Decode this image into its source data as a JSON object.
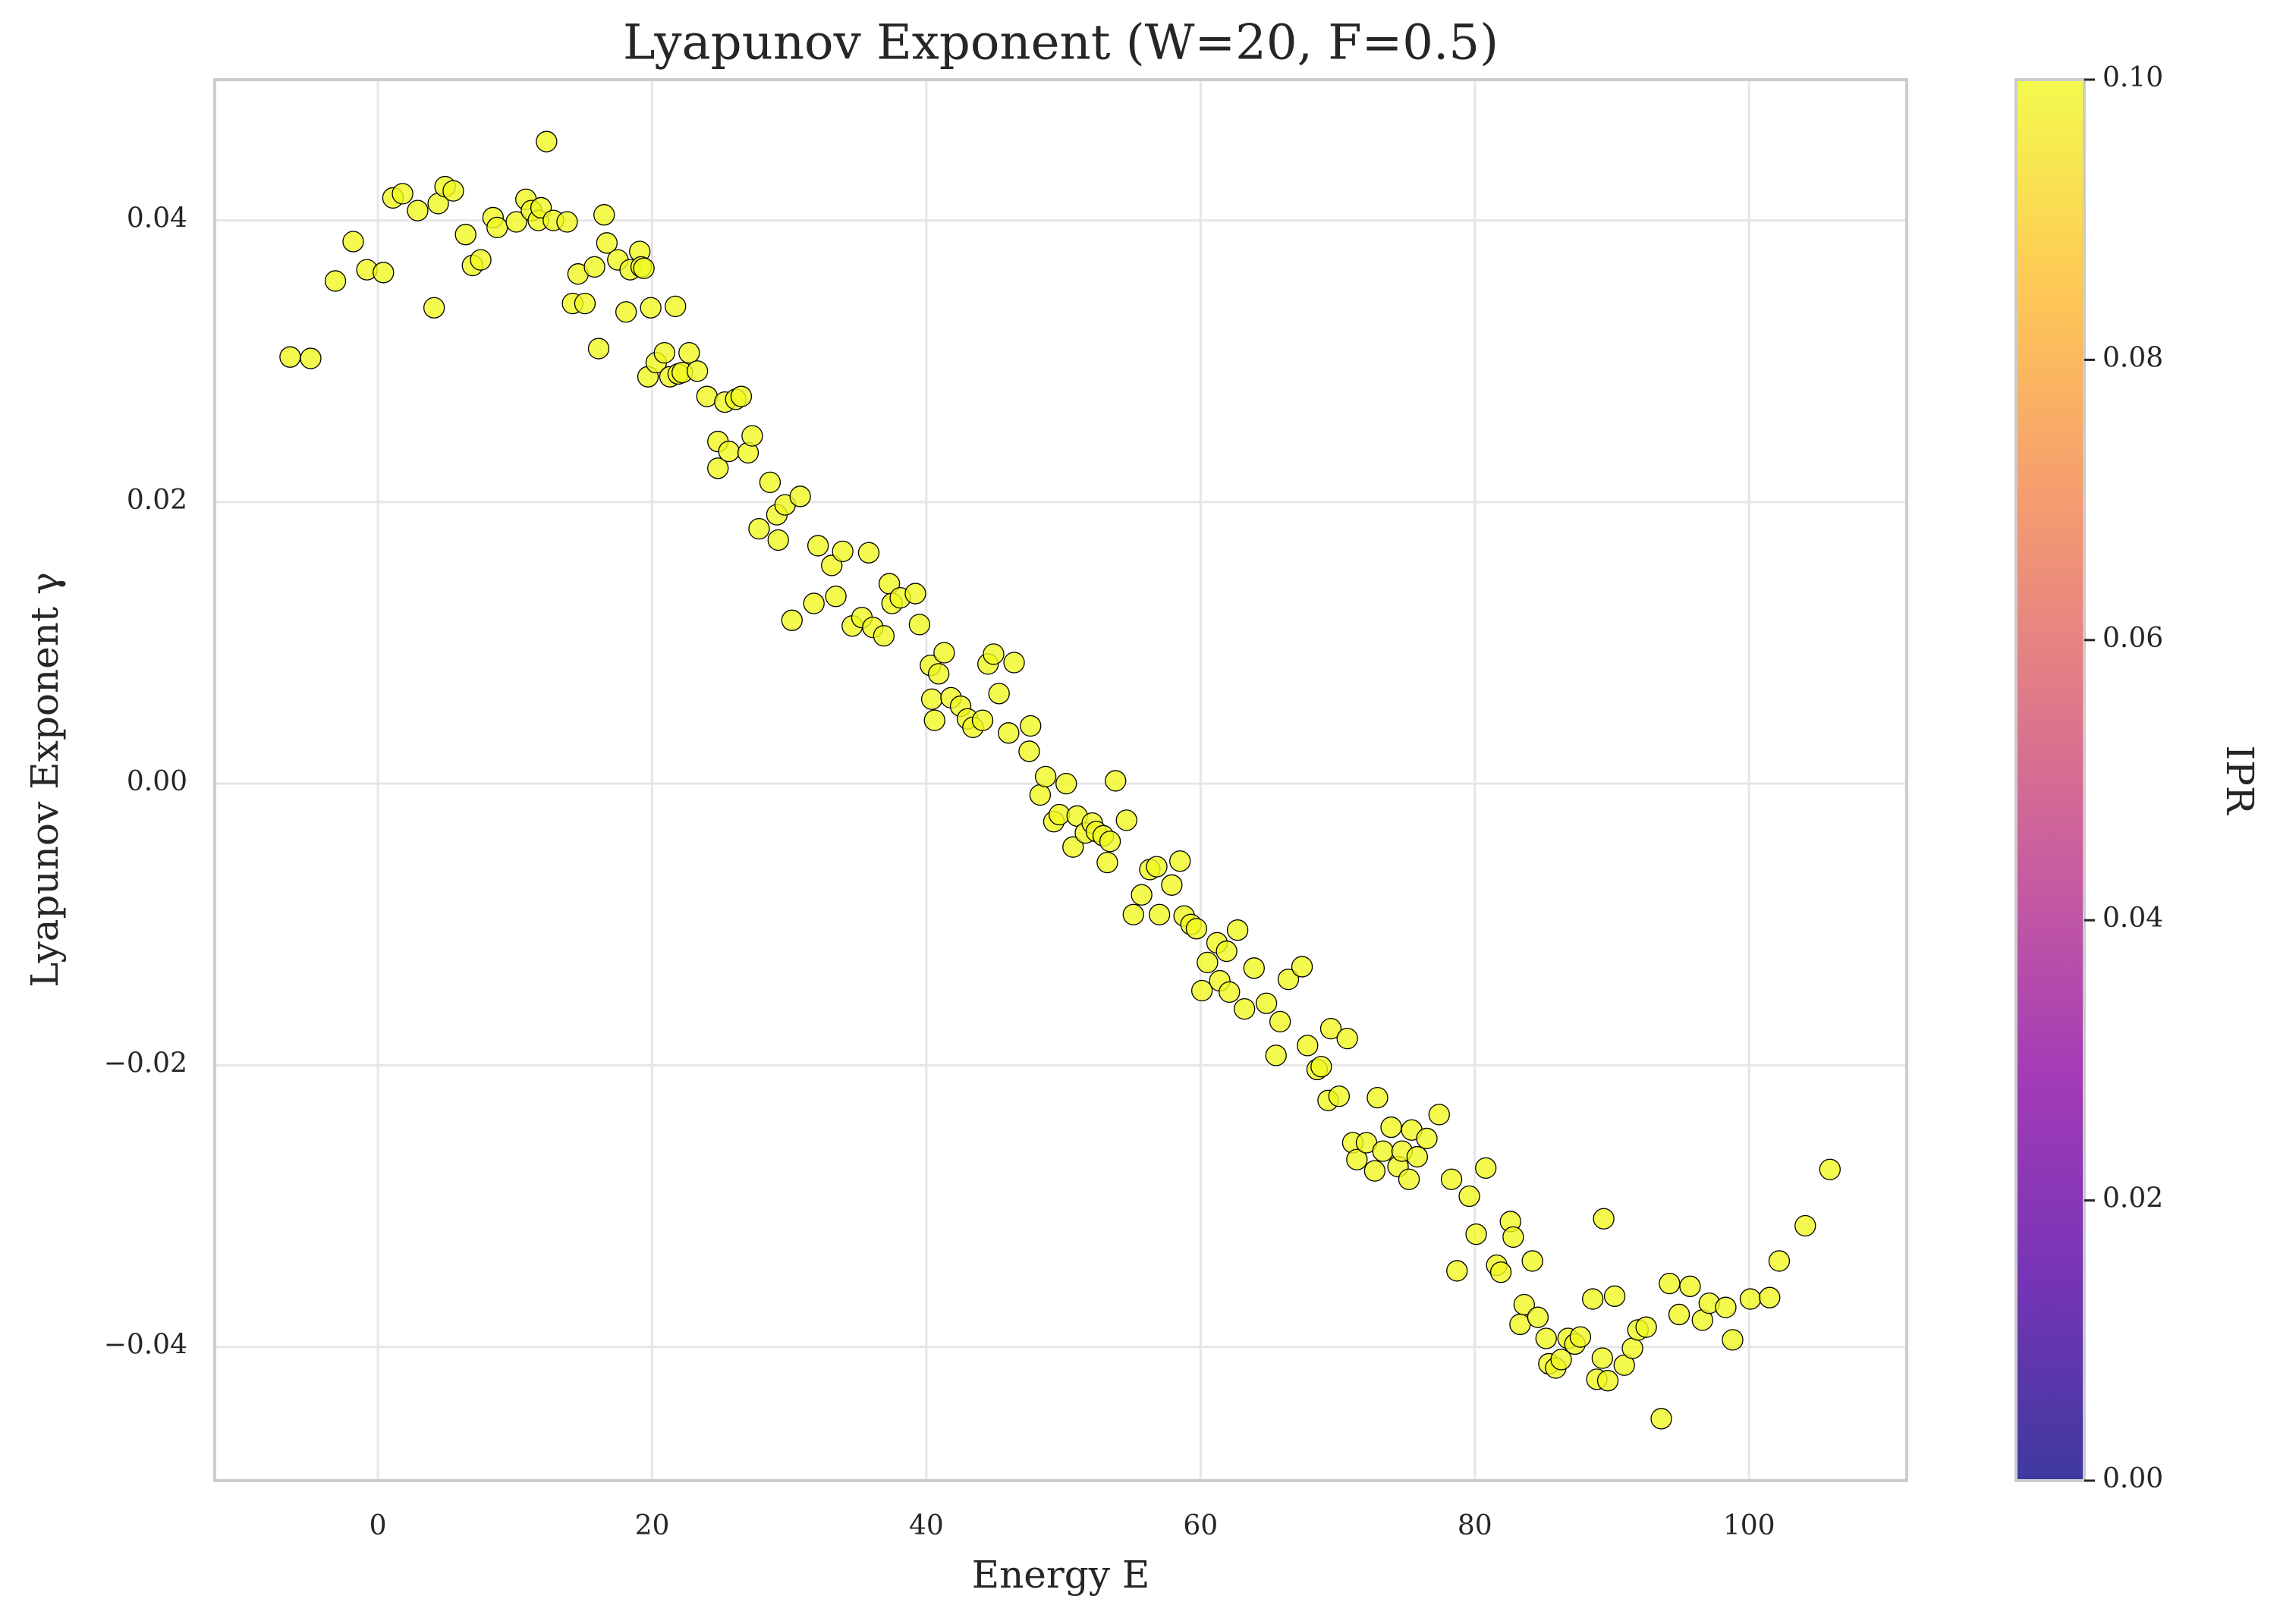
{
  "chart_data": {
    "type": "scatter",
    "title": "Lyapunov Exponent (W=20, F=0.5)",
    "xlabel": "Energy E",
    "ylabel": "Lyapunov Exponent γ",
    "x": [
      -6.4,
      -4.9,
      -3.1,
      -1.8,
      -0.8,
      0.4,
      1.1,
      1.8,
      2.9,
      4.1,
      4.4,
      4.9,
      5.5,
      6.4,
      6.9,
      7.5,
      8.4,
      8.7,
      10.1,
      10.8,
      11.2,
      11.7,
      11.9,
      12.3,
      12.8,
      13.8,
      14.2,
      15.1,
      14.6,
      15.8,
      16.1,
      16.5,
      16.7,
      17.5,
      18.1,
      18.4,
      19.1,
      19.2,
      19.4,
      19.7,
      19.9,
      20.3,
      20.9,
      21.3,
      21.7,
      21.9,
      22.2,
      22.7,
      23.3,
      24.0,
      24.8,
      24.8,
      25.3,
      25.6,
      26.1,
      26.5,
      27.0,
      27.3,
      27.8,
      28.6,
      29.1,
      29.2,
      29.7,
      30.8,
      30.2,
      31.8,
      32.1,
      33.1,
      33.4,
      33.9,
      34.6,
      35.3,
      35.8,
      36.1,
      36.9,
      37.3,
      37.5,
      38.1,
      39.2,
      39.5,
      40.3,
      40.4,
      40.6,
      40.9,
      41.3,
      41.8,
      42.5,
      43.0,
      43.4,
      44.1,
      44.5,
      44.9,
      45.3,
      46.0,
      46.4,
      47.5,
      47.6,
      48.3,
      48.7,
      49.3,
      49.7,
      50.2,
      50.7,
      51.0,
      51.6,
      52.1,
      52.4,
      52.9,
      53.2,
      53.4,
      53.8,
      54.6,
      55.1,
      55.7,
      56.3,
      56.8,
      57.0,
      57.9,
      58.5,
      58.8,
      59.3,
      59.7,
      60.1,
      60.5,
      61.2,
      61.4,
      61.9,
      62.1,
      62.7,
      63.2,
      63.9,
      64.8,
      65.5,
      65.8,
      66.4,
      67.4,
      67.8,
      68.5,
      68.8,
      69.3,
      69.5,
      70.1,
      70.7,
      71.1,
      71.4,
      72.1,
      72.7,
      72.9,
      73.3,
      73.9,
      74.4,
      74.7,
      75.2,
      75.4,
      75.8,
      76.5,
      77.4,
      78.3,
      78.7,
      79.6,
      80.1,
      80.8,
      81.6,
      81.9,
      82.6,
      82.8,
      83.3,
      83.6,
      84.2,
      84.6,
      85.2,
      85.4,
      85.9,
      86.3,
      86.8,
      87.3,
      87.7,
      88.6,
      88.9,
      89.3,
      89.4,
      89.7,
      90.2,
      90.9,
      91.5,
      91.9,
      92.5,
      93.6,
      94.2,
      94.9,
      95.7,
      96.6,
      97.1,
      98.3,
      98.8,
      100.1,
      101.5,
      102.2,
      104.1,
      105.9
    ],
    "values": [
      0.0303,
      0.0302,
      0.0357,
      0.0385,
      0.0365,
      0.0363,
      0.0416,
      0.0419,
      0.0407,
      0.0338,
      0.0412,
      0.0424,
      0.0421,
      0.039,
      0.0368,
      0.0372,
      0.0402,
      0.0395,
      0.0399,
      0.0415,
      0.0407,
      0.04,
      0.0409,
      0.0456,
      0.04,
      0.0399,
      0.0341,
      0.0341,
      0.0362,
      0.0367,
      0.0309,
      0.0404,
      0.0384,
      0.0372,
      0.0335,
      0.0365,
      0.0378,
      0.0367,
      0.0366,
      0.0289,
      0.0338,
      0.0299,
      0.0306,
      0.0289,
      0.0339,
      0.0291,
      0.0292,
      0.0306,
      0.0293,
      0.0275,
      0.0243,
      0.0224,
      0.0271,
      0.0236,
      0.0273,
      0.0275,
      0.0235,
      0.0247,
      0.0181,
      0.0214,
      0.0191,
      0.0173,
      0.0198,
      0.0204,
      0.0116,
      0.0128,
      0.0169,
      0.0155,
      0.0133,
      0.0165,
      0.0112,
      0.0118,
      0.0164,
      0.0111,
      0.0105,
      0.0142,
      0.0128,
      0.0132,
      0.0135,
      0.0113,
      0.0084,
      0.006,
      0.0045,
      0.0078,
      0.0093,
      0.0061,
      0.0055,
      0.0046,
      0.004,
      0.0045,
      0.0085,
      0.0092,
      0.0064,
      0.0036,
      0.0086,
      0.0023,
      0.0041,
      -0.0008,
      0.0005,
      -0.0027,
      -0.0022,
      0.0,
      -0.0045,
      -0.0023,
      -0.0035,
      -0.0028,
      -0.0034,
      -0.0037,
      -0.0056,
      -0.0041,
      0.0002,
      -0.0026,
      -0.0093,
      -0.0079,
      -0.0061,
      -0.0059,
      -0.0093,
      -0.0072,
      -0.0055,
      -0.0094,
      -0.01,
      -0.0103,
      -0.0147,
      -0.0127,
      -0.0113,
      -0.014,
      -0.0119,
      -0.0148,
      -0.0104,
      -0.016,
      -0.0131,
      -0.0156,
      -0.0193,
      -0.0169,
      -0.0139,
      -0.013,
      -0.0186,
      -0.0203,
      -0.0201,
      -0.0225,
      -0.0174,
      -0.0222,
      -0.0181,
      -0.0255,
      -0.0267,
      -0.0255,
      -0.0275,
      -0.0223,
      -0.0261,
      -0.0244,
      -0.0272,
      -0.0261,
      -0.0281,
      -0.0246,
      -0.0265,
      -0.0252,
      -0.0235,
      -0.0281,
      -0.0346,
      -0.0293,
      -0.032,
      -0.0273,
      -0.0342,
      -0.0347,
      -0.0311,
      -0.0322,
      -0.0384,
      -0.037,
      -0.0339,
      -0.0379,
      -0.0394,
      -0.0412,
      -0.0415,
      -0.0409,
      -0.0394,
      -0.0398,
      -0.0393,
      -0.0366,
      -0.0423,
      -0.0408,
      -0.0309,
      -0.0424,
      -0.0364,
      -0.0413,
      -0.0401,
      -0.0388,
      -0.0386,
      -0.0451,
      -0.0355,
      -0.0377,
      -0.0357,
      -0.0381,
      -0.0369,
      -0.0372,
      -0.0395,
      -0.0366,
      -0.0365,
      -0.0339,
      -0.0314,
      -0.0274
    ],
    "color": "#f0f921",
    "alpha": 0.8,
    "edgecolor": "#000000",
    "xlim": [
      -11.9,
      111.5
    ],
    "ylim": [
      -0.0495,
      0.05
    ],
    "xticks": [
      0,
      20,
      40,
      60,
      80,
      100
    ],
    "yticks": [
      {
        "value": -0.04,
        "label": "−0.04"
      },
      {
        "value": -0.02,
        "label": "−0.02"
      },
      {
        "value": 0,
        "label": "0.00"
      },
      {
        "value": 0.02,
        "label": "0.02"
      },
      {
        "value": 0.04,
        "label": "0.04"
      }
    ],
    "grid": true,
    "colorbar": {
      "label": "IPR",
      "lim": [
        0,
        0.1
      ],
      "ticks": [
        {
          "value": 0,
          "label": "0.00"
        },
        {
          "value": 0.02,
          "label": "0.02"
        },
        {
          "value": 0.04,
          "label": "0.04"
        },
        {
          "value": 0.06,
          "label": "0.06"
        },
        {
          "value": 0.08,
          "label": "0.08"
        },
        {
          "value": 0.1,
          "label": "0.10"
        }
      ],
      "colormap": [
        "#0d0887",
        "#5302a3",
        "#8b0aa5",
        "#b83289",
        "#db5c68",
        "#f48849",
        "#febd2a",
        "#f0f921"
      ]
    }
  }
}
